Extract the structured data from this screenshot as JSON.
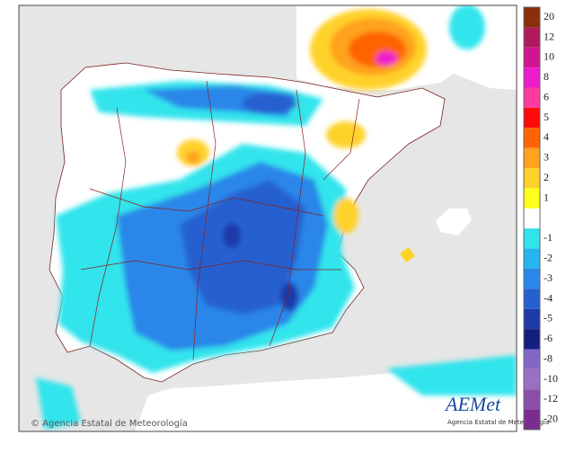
{
  "map": {
    "credit": "© Agencia Estatal de Meteorología",
    "logo": {
      "name": "AEMet",
      "subtitle": "Agencia Estatal de Meteorología"
    }
  },
  "legend": {
    "items": [
      {
        "label": 20,
        "color": "#8b2e0c"
      },
      {
        "label": 12,
        "color": "#b01a5c"
      },
      {
        "label": 10,
        "color": "#d0168e"
      },
      {
        "label": 8,
        "color": "#ee1ccc"
      },
      {
        "label": 6,
        "color": "#ff3aa0"
      },
      {
        "label": 5,
        "color": "#ff0a0a"
      },
      {
        "label": 4,
        "color": "#ff6400"
      },
      {
        "label": 3,
        "color": "#ffa21e"
      },
      {
        "label": 2,
        "color": "#ffd22a"
      },
      {
        "label": 1,
        "color": "#ffff1e"
      },
      {
        "label": -1,
        "color": "#30e4ec"
      },
      {
        "label": -2,
        "color": "#28b4f0"
      },
      {
        "label": -3,
        "color": "#2a86e8"
      },
      {
        "label": -4,
        "color": "#2660d0"
      },
      {
        "label": -5,
        "color": "#1e3aa8"
      },
      {
        "label": -6,
        "color": "#141e80"
      },
      {
        "label": -8,
        "color": "#8266c8"
      },
      {
        "label": -10,
        "color": "#9a70c4"
      },
      {
        "label": -12,
        "color": "#8a4ea8"
      },
      {
        "label": -20,
        "color": "#7a2c90"
      }
    ]
  }
}
